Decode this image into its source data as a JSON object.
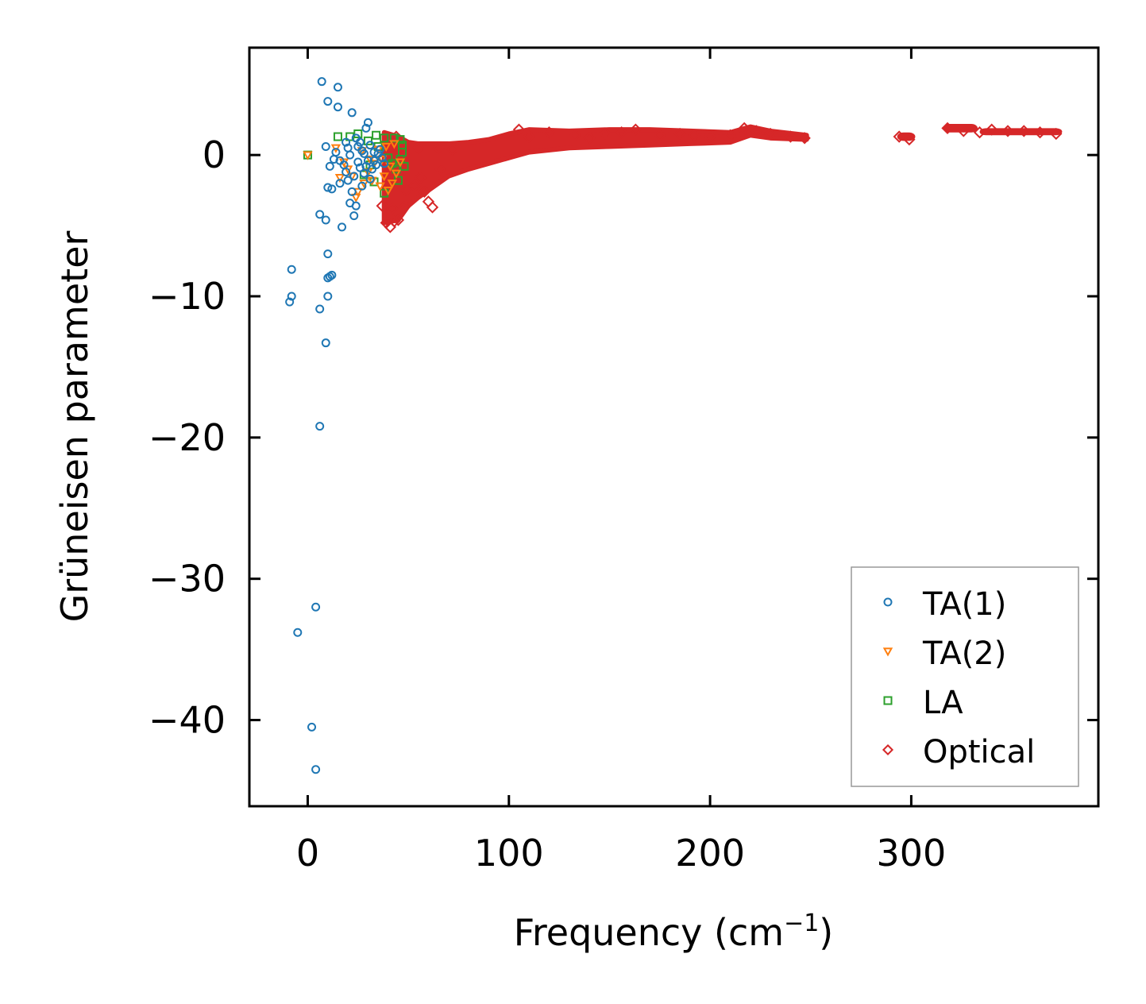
{
  "chart_data": {
    "type": "scatter",
    "title": "",
    "xlabel": "Frequency (cm",
    "xlabel_sup": "−1",
    "xlabel_close": ")",
    "ylabel": "Grüneisen parameter",
    "xlim": [
      -29,
      393
    ],
    "ylim": [
      -46.1,
      7.6
    ],
    "xticks": [
      0,
      100,
      200,
      300
    ],
    "xtick_labels": [
      "0",
      "100",
      "200",
      "300"
    ],
    "yticks": [
      0,
      -10,
      -20,
      -30,
      -40
    ],
    "ytick_labels": [
      "0",
      "−10",
      "−20",
      "−30",
      "−40"
    ],
    "legend": {
      "placement": "lower-right"
    },
    "series": [
      {
        "name": "TA(1)",
        "marker": "circle",
        "color": "#1f77b4",
        "points": [
          [
            7,
            5.2
          ],
          [
            15,
            4.8
          ],
          [
            10,
            3.8
          ],
          [
            15,
            3.4
          ],
          [
            22,
            3
          ],
          [
            30,
            2.3
          ],
          [
            29,
            1.9
          ],
          [
            9,
            0.6
          ],
          [
            14,
            0.2
          ],
          [
            20,
            0.5
          ],
          [
            24,
            1.2
          ],
          [
            26,
            0.9
          ],
          [
            27,
            0.3
          ],
          [
            31,
            0.7
          ],
          [
            33,
            -0.4
          ],
          [
            35,
            0.1
          ],
          [
            37,
            -0.2
          ],
          [
            18,
            -0.7
          ],
          [
            19,
            -1.2
          ],
          [
            23,
            -1.5
          ],
          [
            26,
            -0.9
          ],
          [
            28,
            -1.3
          ],
          [
            30,
            -0.4
          ],
          [
            32,
            -1.0
          ],
          [
            34,
            -0.7
          ],
          [
            11,
            -0.8
          ],
          [
            16,
            -2.0
          ],
          [
            22,
            -2.6
          ],
          [
            21,
            -3.4
          ],
          [
            12,
            -2.4
          ],
          [
            10,
            -2.3
          ],
          [
            24,
            -3.6
          ],
          [
            6,
            -4.2
          ],
          [
            9,
            -4.6
          ],
          [
            17,
            -5.1
          ],
          [
            23,
            -4.3
          ],
          [
            -8,
            -8.1
          ],
          [
            10,
            -7.0
          ],
          [
            12,
            -8.5
          ],
          [
            10,
            -8.7
          ],
          [
            11,
            -8.6
          ],
          [
            -8,
            -10.0
          ],
          [
            -9,
            -10.4
          ],
          [
            10,
            -10.0
          ],
          [
            6,
            -10.9
          ],
          [
            9,
            -13.3
          ],
          [
            6,
            -19.2
          ],
          [
            4,
            -32.0
          ],
          [
            -5,
            -33.8
          ],
          [
            2,
            -40.5
          ],
          [
            4,
            -43.5
          ],
          [
            19,
            0.9
          ],
          [
            21,
            0.0
          ],
          [
            25,
            -0.5
          ],
          [
            28,
            0.1
          ],
          [
            36,
            0.4
          ],
          [
            16,
            -0.4
          ],
          [
            20,
            -1.8
          ],
          [
            27,
            -2.2
          ],
          [
            31,
            -1.7
          ],
          [
            13,
            -0.3
          ],
          [
            25,
            0.6
          ],
          [
            29,
            -0.8
          ],
          [
            33,
            0.2
          ],
          [
            38,
            -0.6
          ]
        ]
      },
      {
        "name": "TA(2)",
        "marker": "triangle-down",
        "color": "#ff7f0e",
        "points": [
          [
            0,
            0
          ],
          [
            14,
            0.5
          ],
          [
            18,
            -0.5
          ],
          [
            22,
            -1.5
          ],
          [
            25,
            -2.6
          ],
          [
            28,
            -2.0
          ],
          [
            30,
            -1.2
          ],
          [
            33,
            -0.6
          ],
          [
            35,
            0.4
          ],
          [
            37,
            -0.3
          ],
          [
            38,
            -1.5
          ],
          [
            40,
            -2.5
          ],
          [
            42,
            -2.0
          ],
          [
            44,
            -1.3
          ],
          [
            46,
            -0.5
          ],
          [
            20,
            -1.0
          ],
          [
            27,
            0.3
          ],
          [
            31,
            -0.3
          ],
          [
            16,
            -1.6
          ],
          [
            24,
            -3.0
          ],
          [
            32,
            -1.8
          ],
          [
            36,
            -2.2
          ],
          [
            39,
            0.6
          ],
          [
            41,
            -0.8
          ],
          [
            43,
            0.8
          ]
        ]
      },
      {
        "name": "LA",
        "marker": "square",
        "color": "#2ca02c",
        "points": [
          [
            0,
            0
          ],
          [
            15,
            1.3
          ],
          [
            21,
            1.3
          ],
          [
            25,
            1.5
          ],
          [
            30,
            1.0
          ],
          [
            34,
            1.4
          ],
          [
            38,
            1.2
          ],
          [
            43,
            1.2
          ],
          [
            46,
            1.1
          ],
          [
            47,
            0.7
          ],
          [
            47,
            0.2
          ],
          [
            46,
            -0.3
          ],
          [
            44,
            -1.0
          ],
          [
            45,
            -1.8
          ],
          [
            38,
            -2.7
          ],
          [
            28,
            -1.4
          ],
          [
            31,
            -0.7
          ],
          [
            35,
            0.6
          ],
          [
            40,
            -0.2
          ],
          [
            42,
            -0.6
          ],
          [
            33,
            -1.9
          ],
          [
            48,
            -0.8
          ]
        ]
      },
      {
        "name": "Optical",
        "marker": "diamond",
        "color": "#d62728",
        "points": [
          [
            37,
            -3.6
          ],
          [
            39,
            -4.8
          ],
          [
            41,
            -5.1
          ],
          [
            43,
            -4.7
          ],
          [
            45,
            -4.6
          ],
          [
            42,
            -3.8
          ],
          [
            48,
            -3.7
          ],
          [
            60,
            -3.3
          ],
          [
            62,
            -3.7
          ],
          [
            44,
            1.3
          ],
          [
            49,
            -2.5
          ],
          [
            53,
            -2.2
          ],
          [
            56,
            -1.6
          ],
          [
            58,
            -2.6
          ],
          [
            66,
            -1.0
          ],
          [
            46,
            0.6
          ],
          [
            55,
            0.5
          ],
          [
            65,
            0.5
          ],
          [
            72,
            0.4
          ],
          [
            105,
            1.8
          ],
          [
            110,
            1.3
          ],
          [
            120,
            1.6
          ],
          [
            133,
            1.4
          ],
          [
            140,
            1.2
          ],
          [
            148,
            1.5
          ],
          [
            156,
            1.6
          ],
          [
            163,
            1.8
          ],
          [
            175,
            1.4
          ],
          [
            185,
            1.5
          ],
          [
            192,
            1.4
          ],
          [
            200,
            1.3
          ],
          [
            210,
            1.4
          ],
          [
            217,
            1.9
          ],
          [
            223,
            1.7
          ],
          [
            230,
            1.5
          ],
          [
            240,
            1.3
          ],
          [
            247,
            1.2
          ],
          [
            294,
            1.3
          ],
          [
            299,
            1.1
          ],
          [
            318,
            1.9
          ],
          [
            326,
            1.7
          ],
          [
            334,
            1.6
          ],
          [
            340,
            1.8
          ],
          [
            348,
            1.7
          ],
          [
            356,
            1.7
          ],
          [
            364,
            1.6
          ],
          [
            372,
            1.5
          ]
        ],
        "envelope": {
          "x": [
            38,
            45,
            50,
            55,
            60,
            70,
            80,
            90,
            100,
            110,
            130,
            150,
            170,
            190,
            210,
            220,
            230,
            248
          ],
          "upper": [
            1.6,
            1.3,
            0.9,
            0.8,
            0.8,
            0.8,
            0.9,
            1.1,
            1.5,
            1.8,
            1.7,
            1.8,
            1.8,
            1.7,
            1.6,
            2.0,
            1.7,
            1.4
          ],
          "lower": [
            -4.8,
            -4.6,
            -3.6,
            -3.0,
            -2.5,
            -1.5,
            -1.0,
            -0.6,
            -0.2,
            0.2,
            0.5,
            0.6,
            0.7,
            0.8,
            0.9,
            1.4,
            1.2,
            1.1
          ]
        },
        "clusters": [
          {
            "x0": 293,
            "x1": 302,
            "y0": 1.0,
            "y1": 1.6
          },
          {
            "x0": 316,
            "x1": 333,
            "y0": 1.6,
            "y1": 2.2
          },
          {
            "x0": 334,
            "x1": 375,
            "y0": 1.4,
            "y1": 1.9
          }
        ]
      }
    ]
  }
}
